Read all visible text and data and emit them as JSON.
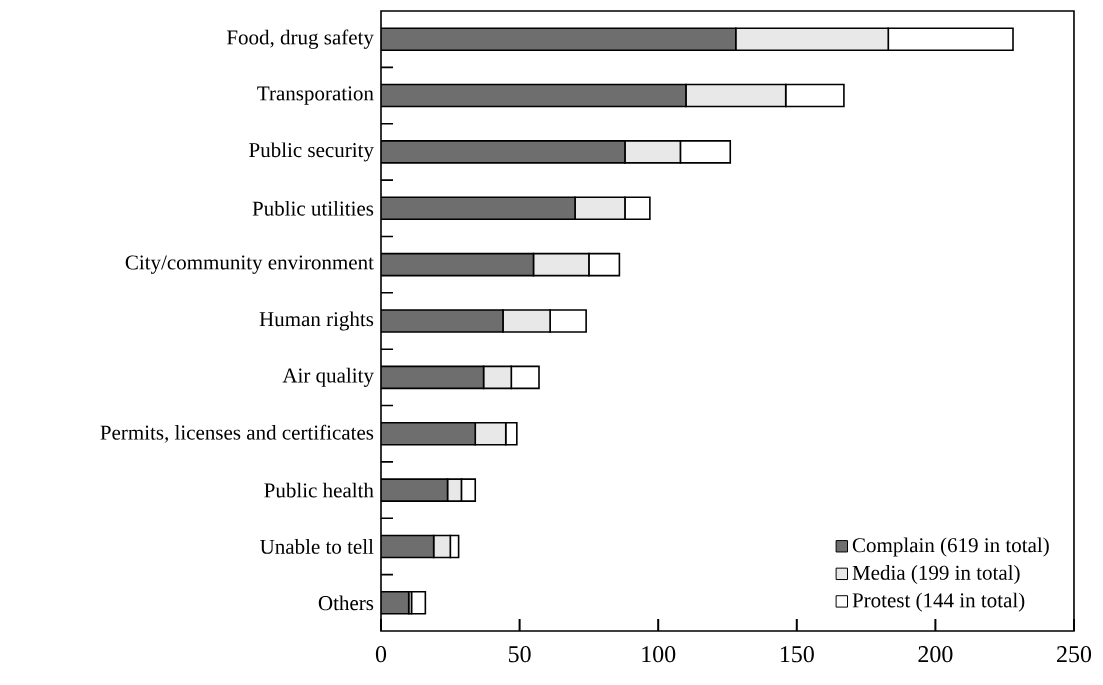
{
  "chart_data": {
    "type": "bar",
    "orientation": "horizontal",
    "stacked": true,
    "categories": [
      "Food, drug safety",
      "Transporation",
      "Public security",
      "Public utilities",
      "City/community environment",
      "Human rights",
      "Air quality",
      "Permits, licenses and certificates",
      "Public health",
      "Unable to tell",
      "Others"
    ],
    "series": [
      {
        "name": "Complain (619 in total)",
        "color": "#6e6e6e",
        "values": [
          128,
          110,
          88,
          70,
          55,
          44,
          37,
          34,
          24,
          19,
          10
        ]
      },
      {
        "name": "Media (199 in total)",
        "color": "#e8e8e8",
        "values": [
          55,
          36,
          20,
          18,
          20,
          17,
          10,
          11,
          5,
          6,
          1
        ]
      },
      {
        "name": "Protest (144 in total)",
        "color": "#ffffff",
        "values": [
          45,
          21,
          18,
          9,
          11,
          13,
          10,
          4,
          5,
          3,
          5
        ]
      }
    ],
    "xlim": [
      0,
      250
    ],
    "xticks": [
      0,
      50,
      100,
      150,
      200,
      250
    ],
    "grid": false,
    "legend": "bottom right"
  }
}
